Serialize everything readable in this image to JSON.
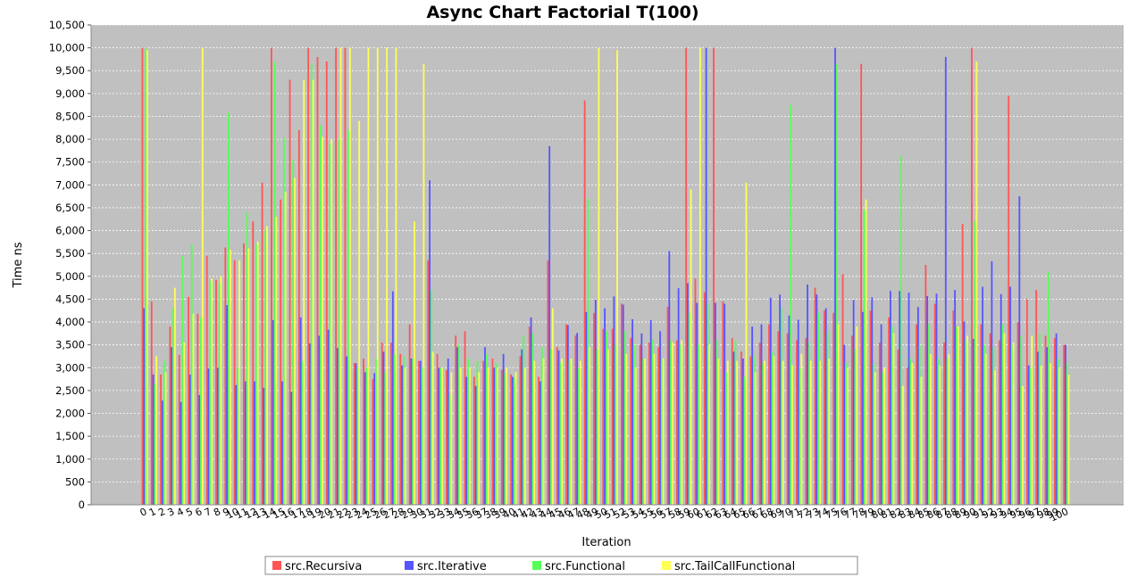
{
  "chart_data": {
    "type": "bar",
    "title": "Async Chart Factorial T(100)",
    "xlabel": "Iteration",
    "ylabel": "Time ns",
    "ylim": [
      0,
      10500
    ],
    "y_ticks": [
      0,
      500,
      1000,
      1500,
      2000,
      2500,
      3000,
      3500,
      4000,
      4500,
      5000,
      5500,
      6000,
      6500,
      7000,
      7500,
      8000,
      8500,
      9000,
      9500,
      10000,
      10500
    ],
    "y_tick_labels": [
      "0",
      "500",
      "1,000",
      "1,500",
      "2,000",
      "2,500",
      "3,000",
      "3,500",
      "4,000",
      "4,500",
      "5,000",
      "5,500",
      "6,000",
      "6,500",
      "7,000",
      "7,500",
      "8,000",
      "8,500",
      "9,000",
      "9,500",
      "10,000",
      "10,500"
    ],
    "grid": true,
    "legend_position": "bottom",
    "categories": [
      "0",
      "1",
      "2",
      "3",
      "4",
      "5",
      "6",
      "7",
      "8",
      "9",
      "10",
      "11",
      "12",
      "13",
      "14",
      "15",
      "16",
      "17",
      "18",
      "19",
      "20",
      "21",
      "22",
      "23",
      "24",
      "25",
      "26",
      "27",
      "28",
      "29",
      "30",
      "31",
      "32",
      "33",
      "34",
      "35",
      "36",
      "37",
      "38",
      "39",
      "40",
      "41",
      "42",
      "43",
      "44",
      "45",
      "46",
      "47",
      "48",
      "49",
      "50",
      "51",
      "52",
      "53",
      "54",
      "55",
      "56",
      "57",
      "58",
      "59",
      "60",
      "61",
      "62",
      "63",
      "64",
      "65",
      "66",
      "67",
      "68",
      "69",
      "70",
      "71",
      "72",
      "73",
      "74",
      "75",
      "76",
      "77",
      "78",
      "79",
      "80",
      "81",
      "82",
      "83",
      "84",
      "85",
      "86",
      "87",
      "88",
      "89",
      "90",
      "91",
      "92",
      "93",
      "94",
      "95",
      "96",
      "97",
      "98",
      "99",
      "100"
    ],
    "series": [
      {
        "name": "src.Recursiva",
        "color": "#ff5555",
        "values": [
          10000,
          4450,
          2850,
          3900,
          3280,
          4550,
          4180,
          5450,
          4920,
          5630,
          5350,
          5720,
          6200,
          7050,
          10000,
          6680,
          9300,
          8200,
          10000,
          9800,
          9700,
          10000,
          10000,
          3100,
          3200,
          2750,
          3550,
          3550,
          3300,
          3950,
          3150,
          5350,
          3300,
          2950,
          3700,
          3800,
          2800,
          3150,
          3200,
          2950,
          2850,
          3250,
          3900,
          2800,
          5350,
          3450,
          3950,
          3700,
          8850,
          4200,
          3850,
          3850,
          4400,
          3650,
          3500,
          3550,
          3450,
          4330,
          3600,
          10000,
          4950,
          4650,
          10000,
          4450,
          3650,
          3350,
          3250,
          3550,
          3950,
          3800,
          3750,
          3600,
          3650,
          4750,
          4250,
          4200,
          5050,
          3700,
          9650,
          4250,
          3550,
          4100,
          3400,
          3000,
          3950,
          5250,
          4400,
          3550,
          4250,
          6150,
          10000,
          3950,
          3750,
          3600,
          8950,
          4000,
          4500,
          4700,
          3700,
          3650,
          3500
        ]
      },
      {
        "name": "src.Iterative",
        "color": "#5555ff",
        "values": [
          4300,
          2850,
          2280,
          3450,
          2250,
          2850,
          2400,
          2980,
          3000,
          4370,
          2620,
          2700,
          2700,
          2560,
          4040,
          2700,
          2470,
          4100,
          3530,
          3700,
          3830,
          3430,
          3250,
          3100,
          2900,
          2880,
          3350,
          4670,
          3050,
          3200,
          3150,
          7100,
          3000,
          3200,
          3450,
          2800,
          2600,
          3450,
          3000,
          3300,
          2800,
          3400,
          4100,
          2700,
          7850,
          3380,
          3930,
          3760,
          4220,
          4490,
          4300,
          4560,
          4380,
          4060,
          3750,
          4040,
          3800,
          5550,
          4740,
          4850,
          4420,
          10000,
          4420,
          4400,
          3350,
          3200,
          3900,
          3950,
          4530,
          4600,
          4140,
          4050,
          4820,
          4600,
          4300,
          10000,
          3500,
          4480,
          4220,
          4540,
          3950,
          4680,
          4680,
          4640,
          4330,
          4570,
          4620,
          9800,
          4700,
          4010,
          3630,
          4770,
          5330,
          4610,
          4770,
          6750,
          3050,
          3350,
          3450,
          3750,
          3500
        ]
      },
      {
        "name": "src.Functional",
        "color": "#55ff55",
        "values": [
          10000,
          2650,
          3150,
          4300,
          5450,
          5700,
          4100,
          4900,
          4860,
          8580,
          3000,
          6400,
          5700,
          6000,
          9700,
          8030,
          7550,
          3150,
          9650,
          8300,
          7900,
          8000,
          8200,
          3000,
          3000,
          3200,
          2900,
          3300,
          3250,
          3200,
          3000,
          4700,
          3000,
          2400,
          3500,
          3200,
          3150,
          3300,
          3100,
          2880,
          2780,
          3700,
          3750,
          3450,
          3400,
          3120,
          3170,
          3000,
          6700,
          3400,
          3800,
          3500,
          3800,
          3500,
          3200,
          3600,
          3200,
          3600,
          3500,
          4200,
          3500,
          4400,
          3600,
          2900,
          3600,
          2800,
          3250,
          3100,
          3350,
          4300,
          8750,
          3000,
          3550,
          4200,
          3800,
          9650,
          3100,
          3400,
          6460,
          3100,
          2900,
          3900,
          7650,
          3200,
          3500,
          3950,
          3200,
          3200,
          3900,
          3600,
          6200,
          3500,
          3450,
          3950,
          3500,
          3700,
          3000,
          3750,
          5100,
          3200,
          3100
        ]
      },
      {
        "name": "src.TailCallFunctional",
        "color": "#ffff55",
        "values": [
          9950,
          3250,
          2900,
          4750,
          3550,
          4180,
          10000,
          4950,
          5000,
          5580,
          5350,
          5610,
          5760,
          6100,
          6300,
          6850,
          7150,
          9300,
          9300,
          8050,
          8000,
          10000,
          10000,
          8400,
          10000,
          10000,
          10000,
          10000,
          3000,
          6200,
          9650,
          3350,
          3000,
          2900,
          3000,
          3000,
          2900,
          3000,
          3000,
          3000,
          2900,
          3000,
          3150,
          3200,
          4300,
          3200,
          3200,
          3150,
          3450,
          10000,
          3400,
          9950,
          3300,
          3000,
          3200,
          3300,
          3200,
          3550,
          3600,
          6900,
          10000,
          3500,
          3200,
          3150,
          3150,
          7050,
          2900,
          3150,
          3250,
          3150,
          3050,
          3300,
          3150,
          3150,
          3200,
          3950,
          3000,
          3900,
          6680,
          2900,
          3000,
          3750,
          2600,
          3100,
          2800,
          3300,
          3050,
          3300,
          3900,
          3700,
          9700,
          3300,
          2950,
          3750,
          3550,
          2600,
          3700,
          3050,
          3100,
          3000,
          2850
        ]
      }
    ]
  }
}
